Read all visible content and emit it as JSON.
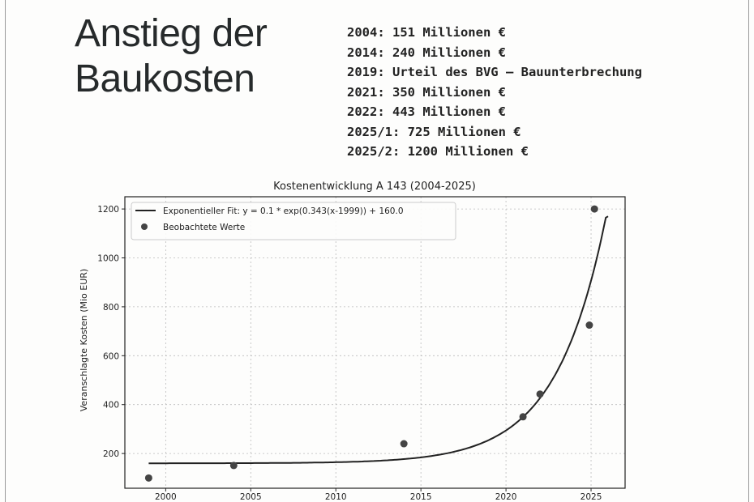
{
  "slide": {
    "title": "Anstieg der Baukosten",
    "facts": [
      "2004: 151 Millionen €",
      "2014: 240 Millionen €",
      "2019: Urteil des BVG – Bauunterbrechung",
      "2021: 350 Millionen €",
      "2022: 443 Millionen €",
      "2025/1: 725 Millionen €",
      "2025/2: 1200 Millionen €"
    ]
  },
  "chart_data": {
    "type": "scatter",
    "title": "Kostenentwicklung A 143 (2004-2025)",
    "xlabel": "",
    "ylabel": "Veranschlagte Kosten (Mio EUR)",
    "xlim": [
      1997.6,
      2027.0
    ],
    "ylim": [
      58,
      1250
    ],
    "xticks": [
      2000,
      2005,
      2010,
      2015,
      2020,
      2025
    ],
    "yticks": [
      200,
      400,
      600,
      800,
      1000,
      1200
    ],
    "grid": true,
    "legend_position": "top-left",
    "series": [
      {
        "name": "Exponentieller Fit: y = 0.1 * exp(0.343(x-1999)) + 160.0",
        "kind": "line",
        "model": {
          "a": 0.1,
          "b": 0.343,
          "x0": 1999,
          "c": 160.0
        },
        "x_range": [
          1999,
          2026
        ],
        "color": "#222222"
      },
      {
        "name": "Beobachtete Werte",
        "kind": "scatter",
        "x": [
          1999,
          2004,
          2014,
          2021,
          2022,
          2024.9,
          2025.2
        ],
        "y": [
          100,
          151,
          240,
          350,
          443,
          725,
          1200
        ],
        "color": "#444444"
      }
    ]
  }
}
